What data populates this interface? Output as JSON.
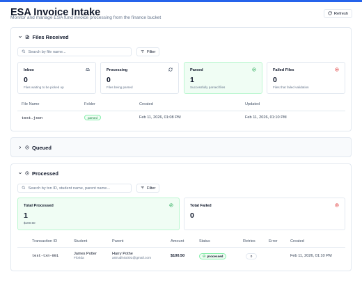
{
  "header": {
    "title": "ESA Invoice Intake",
    "subtitle": "Monitor and manage ESA fund invoice processing from the finance bucket",
    "refresh_label": "Refresh"
  },
  "files_received": {
    "title": "Files Received",
    "search_placeholder": "Search by file name...",
    "filter_label": "Filter",
    "stats": [
      {
        "label": "Inbox",
        "value": "0",
        "desc": "Files waiting to be picked up",
        "icon": "inbox-icon"
      },
      {
        "label": "Processing",
        "value": "0",
        "desc": "Files being parsed",
        "icon": "refresh-icon"
      },
      {
        "label": "Parsed",
        "value": "1",
        "desc": "Successfully parsed files",
        "icon": "check-circle-icon"
      },
      {
        "label": "Failed Files",
        "value": "0",
        "desc": "Files that failed validation",
        "icon": "x-circle-icon"
      }
    ],
    "columns": [
      "File Name",
      "Folder",
      "Created",
      "Updated"
    ],
    "rows": [
      {
        "file_name": "test.json",
        "folder": "parsed",
        "created": "Feb 11, 2026, 01:08 PM",
        "updated": "Feb 11, 2026, 01:10 PM"
      }
    ]
  },
  "queued": {
    "title": "Queued"
  },
  "processed": {
    "title": "Processed",
    "search_placeholder": "Search by txn ID, student name, parent name...",
    "filter_label": "Filter",
    "total_processed": {
      "label": "Total Processed",
      "value": "1",
      "amount": "$100.50"
    },
    "total_failed": {
      "label": "Total Failed",
      "value": "0"
    },
    "columns": [
      "Transaction ID",
      "Student",
      "Parent",
      "Amount",
      "Status",
      "Retries",
      "Error",
      "Created"
    ],
    "rows": [
      {
        "txn_id": "test-txn-001",
        "student_name": "James Potter",
        "student_state": "Florida",
        "parent_name": "Harry Pothe",
        "parent_email": "anirudh4o001@gmail.com",
        "amount": "$100.50",
        "status": "processed",
        "retries": "0",
        "error": "",
        "created": "Feb 11, 2026, 01:10 PM"
      }
    ]
  },
  "colors": {
    "accent": "#2563eb",
    "success": "#16a34a",
    "danger": "#dc2626"
  }
}
